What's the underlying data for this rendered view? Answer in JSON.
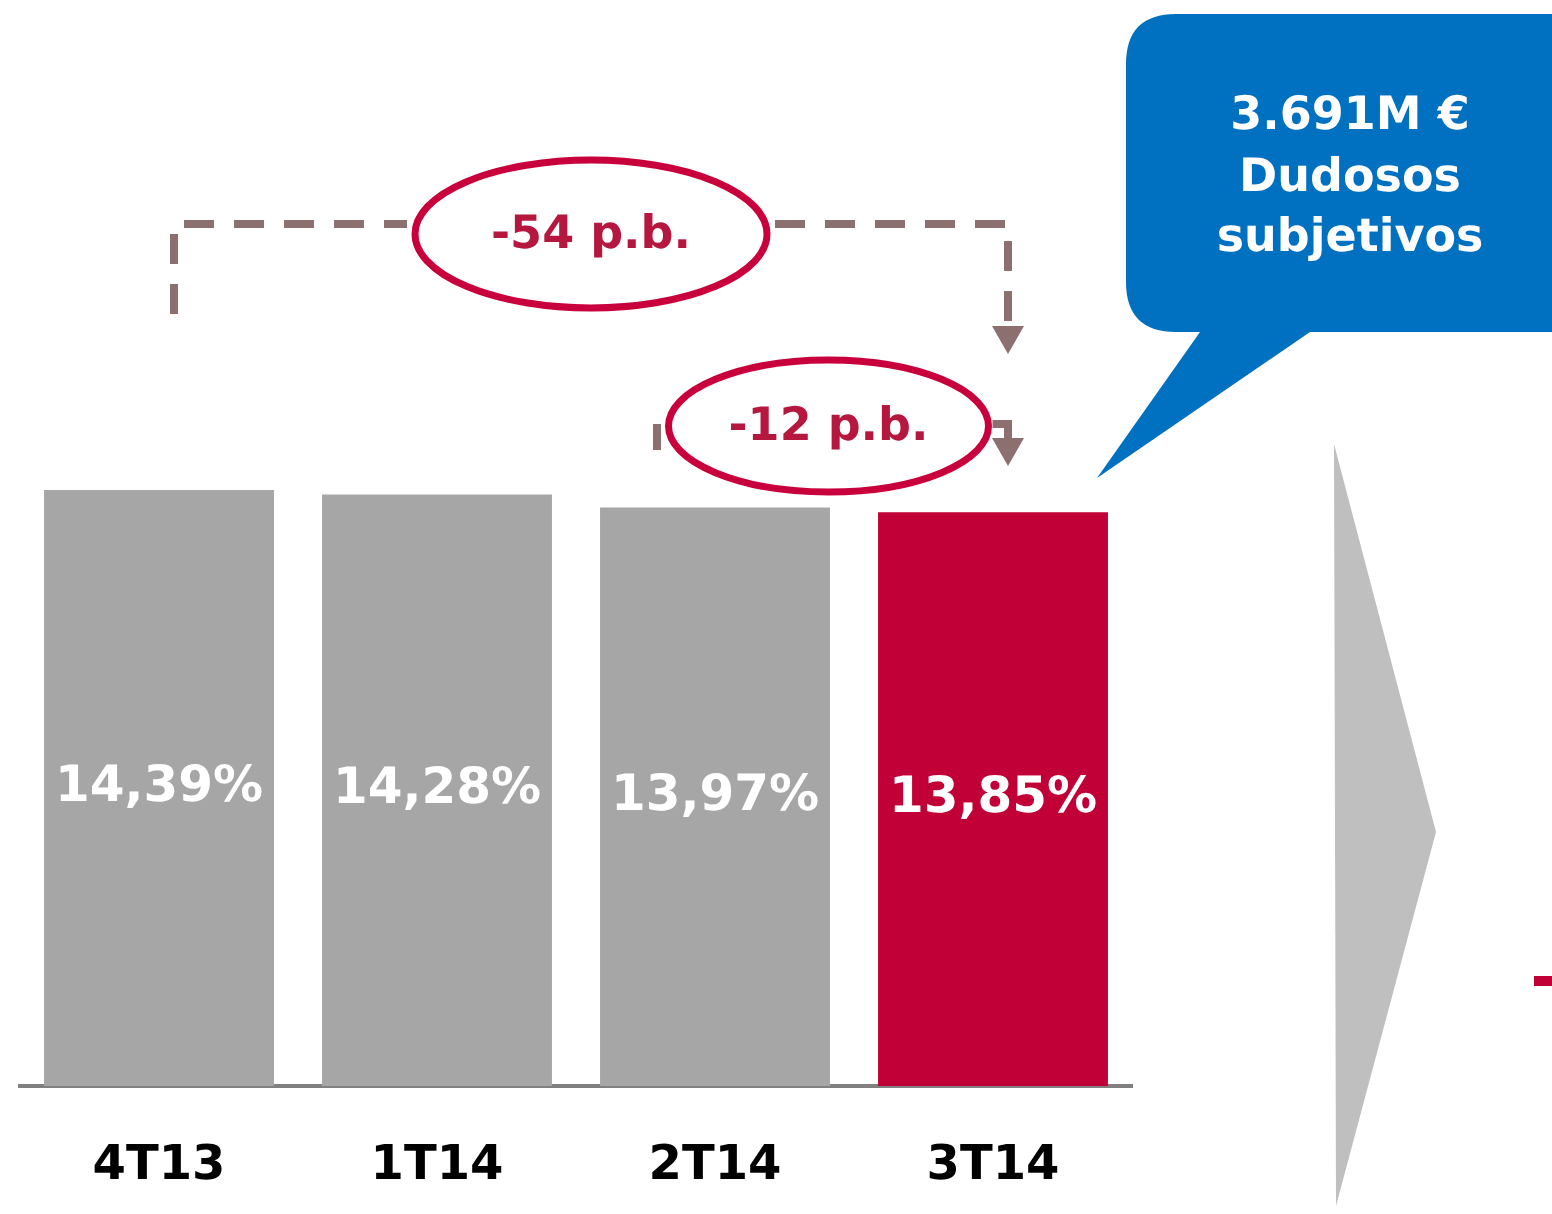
{
  "chart_data": {
    "type": "bar",
    "categories": [
      "4T13",
      "1T14",
      "2T14",
      "3T14"
    ],
    "values": [
      14.39,
      14.28,
      13.97,
      13.85
    ],
    "colors": [
      "#a6a6a6",
      "#a6a6a6",
      "#a6a6a6",
      "#c00037"
    ],
    "value_labels": [
      "14,39%",
      "14,28%",
      "13,97%",
      "13,85%"
    ],
    "tick_labels": "x",
    "annotations": [
      "-54 p.b.",
      "-12 p.b.",
      "3.691M €\nDudosos\nsubjetivos"
    ]
  }
}
